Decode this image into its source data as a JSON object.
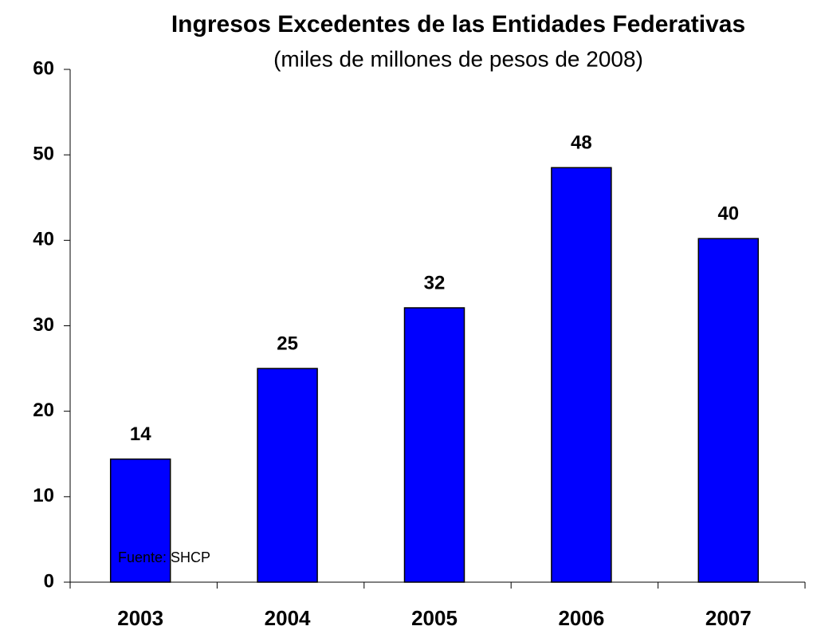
{
  "chart_data": {
    "type": "bar",
    "title": "Ingresos Excedentes de las Entidades Federativas",
    "subtitle": "(miles de millones de pesos de 2008)",
    "categories": [
      "2003",
      "2004",
      "2005",
      "2006",
      "2007"
    ],
    "values": [
      14.4,
      25,
      32.1,
      48.5,
      40.2
    ],
    "value_labels": [
      "14",
      "25",
      "32",
      "48",
      "40"
    ],
    "color": "#0000ff",
    "ylim": [
      0,
      60
    ],
    "yticks": [
      0,
      10,
      20,
      30,
      40,
      50,
      60
    ],
    "grid": false,
    "annotation": "Fuente: SHCP"
  }
}
